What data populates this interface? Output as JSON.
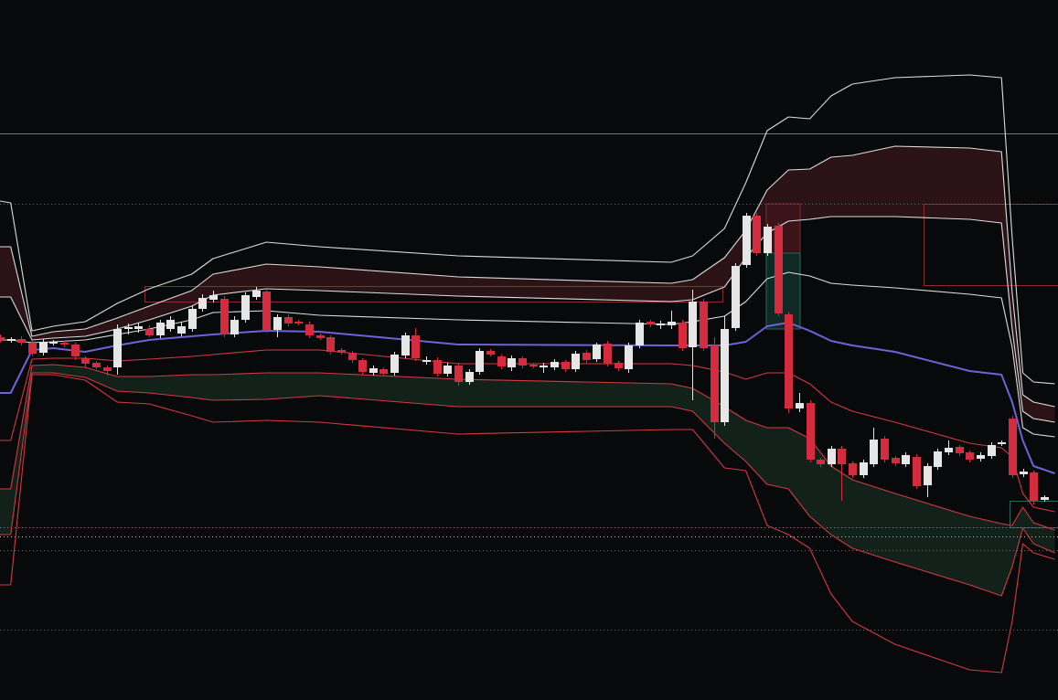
{
  "chart_data": {
    "type": "candlestick",
    "x": [
      0,
      1,
      2,
      3,
      4,
      5,
      6,
      7,
      8,
      9,
      10,
      11,
      12,
      13,
      14,
      15,
      16,
      17,
      18,
      19,
      20,
      21,
      22,
      23,
      24,
      25,
      26,
      27,
      28,
      29,
      30,
      31,
      32,
      33,
      34,
      35,
      36,
      37,
      38,
      39,
      40,
      41,
      42,
      43,
      44,
      45,
      46,
      47,
      48,
      49,
      50,
      51,
      52,
      53,
      54,
      55,
      56,
      57,
      58,
      59,
      60,
      61,
      62,
      63,
      64,
      65,
      66,
      67,
      68,
      69,
      70,
      71,
      72,
      73,
      74,
      75,
      76,
      77,
      78,
      79,
      80,
      81,
      82,
      83,
      84,
      85,
      86,
      87,
      88,
      89,
      90,
      91,
      92,
      93,
      94,
      95,
      96,
      97,
      98
    ],
    "open": [
      39.7,
      39.3,
      39.5,
      39.1,
      38.0,
      39.0,
      39.1,
      38.9,
      37.4,
      36.9,
      36.4,
      36.4,
      40.6,
      40.6,
      40.6,
      39.9,
      40.6,
      40.1,
      40.6,
      42.8,
      43.8,
      43.9,
      40.0,
      41.6,
      44.1,
      44.7,
      40.5,
      41.9,
      41.4,
      41.1,
      39.9,
      39.7,
      38.3,
      38.0,
      37.2,
      35.8,
      36.2,
      35.8,
      37.7,
      39.9,
      37.0,
      37.2,
      35.7,
      36.6,
      34.8,
      35.9,
      38.2,
      37.6,
      36.4,
      37.4,
      36.7,
      36.4,
      36.4,
      37.0,
      36.2,
      38.0,
      37.3,
      39.0,
      36.9,
      36.2,
      38.8,
      41.4,
      41.0,
      41.0,
      41.3,
      38.6,
      43.6,
      38.8,
      30.4,
      40.7,
      47.6,
      53.0,
      48.9,
      51.9,
      42.2,
      31.9,
      32.5,
      26.3,
      25.8,
      27.5,
      25.9,
      24.6,
      25.8,
      28.6,
      26.5,
      25.8,
      26.6,
      23.5,
      25.5,
      27.1,
      27.7,
      27.1,
      26.4,
      26.7,
      28.0,
      30.8,
      24.7,
      24.9,
      21.9
    ],
    "high": [
      40.0,
      39.7,
      39.8,
      39.4,
      39.5,
      39.4,
      39.3,
      39.1,
      37.6,
      37.1,
      36.6,
      41.1,
      41.2,
      41.3,
      41.0,
      41.6,
      42.0,
      41.3,
      43.1,
      44.4,
      44.8,
      44.2,
      42.0,
      44.6,
      45.2,
      45.0,
      42.2,
      42.2,
      41.6,
      41.4,
      40.1,
      39.9,
      38.5,
      38.2,
      37.4,
      36.6,
      36.4,
      38.1,
      40.2,
      40.7,
      37.6,
      37.5,
      36.9,
      36.9,
      36.2,
      38.5,
      38.4,
      37.8,
      37.7,
      37.6,
      36.9,
      36.9,
      37.3,
      37.2,
      38.2,
      38.3,
      39.1,
      39.3,
      37.1,
      39.1,
      41.6,
      41.6,
      41.5,
      42.6,
      41.6,
      44.9,
      43.9,
      39.7,
      42.0,
      47.8,
      53.3,
      53.3,
      52.1,
      52.2,
      42.5,
      33.6,
      32.8,
      26.5,
      27.8,
      27.8,
      26.1,
      26.3,
      29.8,
      28.9,
      26.7,
      27.1,
      26.9,
      25.9,
      27.5,
      28.4,
      27.9,
      27.3,
      27.1,
      28.2,
      28.4,
      31.1,
      25.3,
      25.1,
      22.4
    ],
    "low": [
      39.1,
      39.1,
      38.8,
      37.6,
      37.7,
      38.8,
      38.6,
      37.2,
      36.4,
      36.2,
      35.5,
      35.6,
      40.0,
      40.2,
      39.7,
      39.6,
      40.3,
      39.8,
      40.3,
      42.5,
      43.5,
      39.7,
      39.7,
      41.3,
      43.8,
      40.2,
      39.7,
      40.9,
      41.0,
      39.6,
      39.4,
      37.8,
      37.8,
      36.9,
      35.6,
      35.5,
      35.5,
      35.5,
      37.4,
      37.1,
      36.7,
      35.4,
      35.4,
      34.4,
      34.5,
      35.6,
      37.6,
      36.2,
      36.0,
      36.3,
      36.3,
      35.8,
      36.1,
      35.9,
      35.9,
      36.9,
      37.0,
      36.5,
      36.0,
      35.8,
      38.5,
      40.8,
      40.6,
      40.6,
      38.2,
      32.8,
      38.2,
      28.6,
      30.0,
      40.4,
      47.3,
      48.6,
      48.6,
      42.0,
      31.4,
      31.5,
      26.0,
      25.5,
      25.5,
      21.8,
      24.3,
      24.3,
      25.5,
      26.0,
      25.6,
      25.5,
      23.1,
      22.2,
      25.2,
      26.8,
      26.7,
      26.0,
      26.1,
      26.4,
      27.8,
      24.3,
      24.4,
      21.4,
      21.7
    ],
    "close": [
      39.4,
      39.5,
      39.1,
      37.9,
      39.2,
      39.2,
      38.9,
      37.6,
      36.8,
      36.4,
      36.0,
      40.6,
      40.8,
      40.9,
      39.9,
      41.3,
      41.6,
      40.9,
      42.8,
      44.0,
      44.3,
      40.0,
      41.6,
      44.3,
      44.8,
      40.5,
      41.9,
      41.2,
      41.2,
      39.9,
      39.6,
      38.1,
      38.0,
      37.2,
      35.9,
      36.3,
      35.7,
      37.8,
      39.9,
      37.4,
      37.2,
      35.7,
      36.6,
      34.8,
      35.9,
      38.2,
      37.8,
      36.5,
      37.4,
      36.6,
      36.5,
      36.6,
      37.0,
      36.2,
      37.9,
      37.2,
      38.9,
      36.8,
      36.3,
      38.8,
      41.3,
      41.1,
      41.2,
      41.4,
      38.5,
      43.6,
      38.5,
      30.4,
      40.6,
      47.5,
      53.0,
      48.9,
      51.8,
      42.3,
      31.9,
      32.5,
      26.3,
      25.8,
      27.5,
      25.8,
      24.6,
      26.0,
      28.5,
      26.3,
      25.9,
      26.8,
      23.4,
      25.6,
      27.2,
      27.6,
      27.0,
      26.3,
      26.8,
      27.9,
      28.2,
      24.6,
      25.0,
      21.8,
      22.2
    ],
    "up_color": "#e6e6e6",
    "down_color": "#d42c3e",
    "xlim": [
      0,
      99.3
    ],
    "ylim": [
      0,
      76.6
    ],
    "line_x": [
      0,
      1,
      3,
      5,
      8,
      11,
      14,
      18,
      20,
      25,
      30,
      43,
      63,
      65,
      68,
      70,
      72,
      74,
      76,
      78,
      80,
      84,
      91,
      94,
      95,
      96,
      97,
      99
    ],
    "lines": [
      {
        "color": "#dcdcdc",
        "values": [
          54.6,
          54.4,
          40.4,
          40.9,
          41.4,
          43.4,
          45.0,
          46.6,
          48.3,
          50.1,
          49.6,
          48.6,
          47.9,
          48.6,
          51.6,
          56.6,
          62.3,
          63.8,
          63.6,
          66.1,
          67.4,
          68.1,
          68.4,
          68.1,
          50.6,
          35.8,
          34.8,
          34.6
        ]
      },
      {
        "color": "#dcdcdc",
        "fill": "#2b1217",
        "values": [
          49.6,
          49.6,
          39.8,
          40.3,
          40.6,
          41.8,
          43.1,
          44.8,
          46.6,
          47.7,
          47.4,
          46.3,
          45.6,
          46.0,
          48.4,
          51.4,
          55.8,
          58.0,
          58.1,
          59.4,
          59.6,
          60.6,
          60.4,
          60.0,
          44.6,
          33.4,
          32.6,
          32.1
        ]
      },
      {
        "color": "#dcdcdc",
        "values": [
          44.1,
          44.1,
          39.4,
          39.6,
          39.8,
          40.6,
          41.6,
          43.1,
          44.3,
          45.0,
          44.8,
          44.2,
          43.6,
          43.8,
          45.2,
          48.4,
          51.1,
          52.4,
          52.6,
          52.9,
          52.9,
          52.9,
          52.6,
          52.2,
          40.6,
          31.6,
          30.8,
          30.4
        ]
      },
      {
        "color": "#dcdcdc",
        "values": [
          39.4,
          39.4,
          39.1,
          39.2,
          39.4,
          40.0,
          40.6,
          41.6,
          42.4,
          42.6,
          42.1,
          41.6,
          41.1,
          41.4,
          42.0,
          43.6,
          46.1,
          46.8,
          46.4,
          45.6,
          45.4,
          45.1,
          44.4,
          44.0,
          38.6,
          29.8,
          29.1,
          28.8
        ]
      },
      {
        "color": "#6f62d8",
        "values": [
          33.6,
          33.6,
          38.3,
          38.5,
          38.1,
          38.8,
          39.4,
          39.8,
          40.0,
          40.4,
          40.3,
          38.9,
          38.8,
          38.8,
          38.8,
          39.2,
          40.9,
          41.3,
          40.4,
          39.3,
          38.8,
          38.1,
          36.0,
          35.6,
          32.6,
          28.4,
          25.6,
          24.8
        ]
      },
      {
        "color": "#d33a40",
        "values": [
          28.4,
          28.4,
          37.3,
          37.4,
          37.4,
          37.1,
          37.3,
          37.6,
          37.8,
          38.3,
          38.3,
          36.8,
          36.8,
          36.6,
          35.9,
          35.1,
          35.8,
          35.8,
          34.6,
          32.6,
          31.6,
          30.4,
          28.1,
          27.6,
          26.6,
          22.6,
          21.1,
          20.6
        ]
      },
      {
        "color": "#d33a40",
        "fill": "#12211a",
        "values": [
          23.1,
          23.1,
          36.6,
          36.7,
          36.4,
          35.4,
          35.4,
          35.6,
          35.6,
          35.8,
          35.8,
          35.1,
          34.6,
          34.1,
          32.1,
          30.6,
          29.8,
          29.8,
          28.6,
          25.6,
          24.1,
          22.6,
          20.1,
          19.3,
          19.1,
          21.1,
          19.4,
          18.6
        ]
      },
      {
        "color": "#d33a40",
        "values": [
          18.1,
          18.1,
          35.8,
          35.8,
          35.3,
          33.8,
          33.6,
          33.1,
          32.8,
          32.9,
          33.3,
          32.1,
          32.1,
          31.6,
          28.1,
          26.1,
          23.6,
          23.1,
          20.1,
          18.1,
          16.6,
          15.1,
          12.6,
          11.4,
          14.6,
          18.8,
          17.1,
          16.1
        ]
      },
      {
        "color": "#d33a40",
        "values": [
          12.6,
          12.6,
          35.6,
          35.6,
          35.0,
          32.6,
          32.4,
          31.1,
          30.4,
          30.6,
          30.4,
          29.1,
          29.6,
          29.6,
          25.4,
          25.1,
          19.1,
          18.1,
          16.6,
          11.6,
          8.6,
          6.1,
          3.3,
          3.0,
          8.6,
          17.1,
          16.1,
          15.4
        ]
      }
    ],
    "levels": [
      {
        "value": 62.0,
        "color": "#777777",
        "style": "solid"
      },
      {
        "value": 54.3,
        "color": "#3f6f6a",
        "style": "dotted"
      },
      {
        "value": 18.9,
        "color": "#3aa59a",
        "style": "dotted"
      },
      {
        "value": 17.9,
        "color": "#bdbdbd",
        "style": "dotted"
      },
      {
        "value": 16.4,
        "color": "#6a6a6a",
        "style": "dotted"
      },
      {
        "value": 7.7,
        "color": "#6a6a6a",
        "style": "dotted"
      }
    ]
  }
}
